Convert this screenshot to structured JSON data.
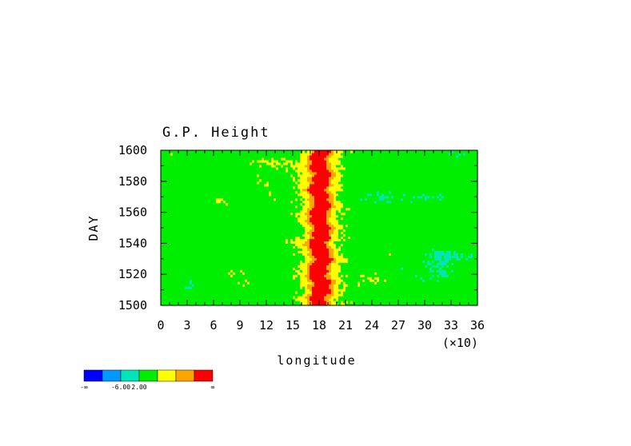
{
  "chart_data": {
    "type": "heatmap",
    "title": "G.P. Height",
    "xlabel": "longitude",
    "x_scale_note": "(×10)",
    "ylabel": "DAY",
    "xlim": [
      0,
      360
    ],
    "ylim": [
      1500,
      1600
    ],
    "x_ticks": [
      "0",
      "3",
      "6",
      "9",
      "12",
      "15",
      "18",
      "21",
      "24",
      "27",
      "30",
      "33",
      "36"
    ],
    "x_tick_values": [
      0,
      30,
      60,
      90,
      120,
      150,
      180,
      210,
      240,
      270,
      300,
      330,
      360
    ],
    "y_ticks": [
      "1500",
      "1520",
      "1540",
      "1560",
      "1580",
      "1600"
    ],
    "y_tick_values": [
      1500,
      1520,
      1540,
      1560,
      1580,
      1600
    ],
    "grid": false,
    "colorbar": {
      "colors": [
        "#0000ff",
        "#0099ff",
        "#00e6b8",
        "#00ee00",
        "#ffff00",
        "#ffa500",
        "#ff0000"
      ],
      "labels": [
        "-∞",
        "-6.00",
        "2.00",
        "∞"
      ],
      "label_at_boundary": [
        0,
        2,
        3,
        7
      ]
    },
    "field_description": {
      "background_level": 3,
      "ridge_center_longitude": 181,
      "ridge_peak_level": 6
    }
  }
}
